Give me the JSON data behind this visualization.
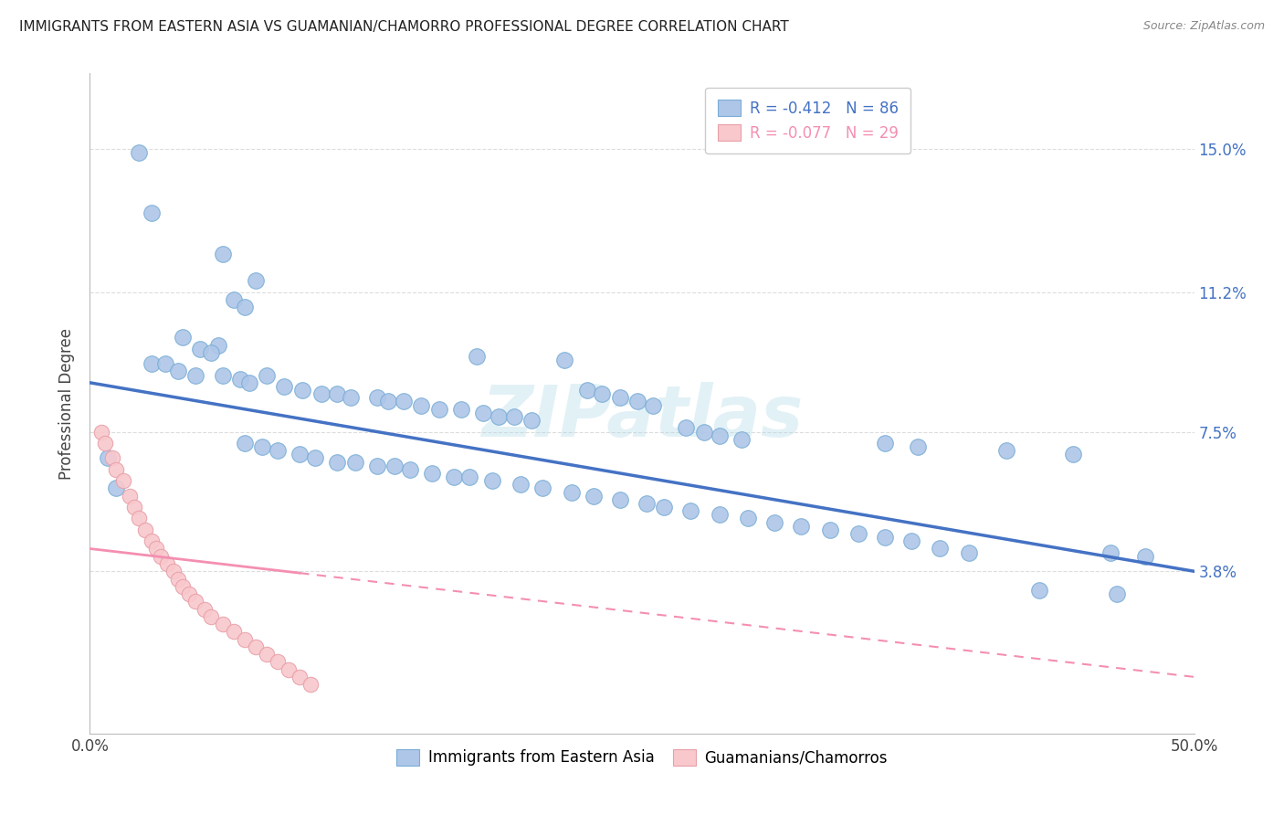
{
  "title": "IMMIGRANTS FROM EASTERN ASIA VS GUAMANIAN/CHAMORRO PROFESSIONAL DEGREE CORRELATION CHART",
  "source": "Source: ZipAtlas.com",
  "ylabel": "Professional Degree",
  "ytick_labels": [
    "3.8%",
    "7.5%",
    "11.2%",
    "15.0%"
  ],
  "ytick_values": [
    0.038,
    0.075,
    0.112,
    0.15
  ],
  "xlim": [
    0.0,
    0.5
  ],
  "ylim": [
    -0.005,
    0.17
  ],
  "legend_label_blue": "Immigrants from Eastern Asia",
  "legend_label_pink": "Guamanians/Chamorros",
  "blue_r": -0.412,
  "blue_n": 86,
  "pink_r": -0.077,
  "pink_n": 29,
  "blue_line_y0": 0.088,
  "blue_line_y1": 0.038,
  "pink_line_y0": 0.044,
  "pink_line_y1": 0.01,
  "blue_line_color": "#4472C4",
  "pink_line_color": "#F48FB1",
  "pink_line_solid_end": 0.095,
  "blue_scatter_color": "#AEC6E8",
  "pink_scatter_color": "#F8C8CC",
  "watermark": "ZIPatlas",
  "grid_color": "#DDDDDD",
  "background_color": "#FFFFFF",
  "title_fontsize": 11,
  "blue_scatter": [
    [
      0.022,
      0.149
    ],
    [
      0.028,
      0.133
    ],
    [
      0.06,
      0.122
    ],
    [
      0.075,
      0.115
    ],
    [
      0.065,
      0.11
    ],
    [
      0.07,
      0.108
    ],
    [
      0.042,
      0.1
    ],
    [
      0.058,
      0.098
    ],
    [
      0.05,
      0.097
    ],
    [
      0.055,
      0.096
    ],
    [
      0.028,
      0.093
    ],
    [
      0.034,
      0.093
    ],
    [
      0.04,
      0.091
    ],
    [
      0.048,
      0.09
    ],
    [
      0.06,
      0.09
    ],
    [
      0.08,
      0.09
    ],
    [
      0.068,
      0.089
    ],
    [
      0.072,
      0.088
    ],
    [
      0.088,
      0.087
    ],
    [
      0.096,
      0.086
    ],
    [
      0.105,
      0.085
    ],
    [
      0.112,
      0.085
    ],
    [
      0.118,
      0.084
    ],
    [
      0.13,
      0.084
    ],
    [
      0.135,
      0.083
    ],
    [
      0.142,
      0.083
    ],
    [
      0.15,
      0.082
    ],
    [
      0.158,
      0.081
    ],
    [
      0.168,
      0.081
    ],
    [
      0.178,
      0.08
    ],
    [
      0.185,
      0.079
    ],
    [
      0.192,
      0.079
    ],
    [
      0.2,
      0.078
    ],
    [
      0.215,
      0.094
    ],
    [
      0.175,
      0.095
    ],
    [
      0.225,
      0.086
    ],
    [
      0.232,
      0.085
    ],
    [
      0.24,
      0.084
    ],
    [
      0.248,
      0.083
    ],
    [
      0.255,
      0.082
    ],
    [
      0.27,
      0.076
    ],
    [
      0.278,
      0.075
    ],
    [
      0.285,
      0.074
    ],
    [
      0.295,
      0.073
    ],
    [
      0.07,
      0.072
    ],
    [
      0.078,
      0.071
    ],
    [
      0.085,
      0.07
    ],
    [
      0.095,
      0.069
    ],
    [
      0.102,
      0.068
    ],
    [
      0.112,
      0.067
    ],
    [
      0.12,
      0.067
    ],
    [
      0.13,
      0.066
    ],
    [
      0.138,
      0.066
    ],
    [
      0.145,
      0.065
    ],
    [
      0.155,
      0.064
    ],
    [
      0.165,
      0.063
    ],
    [
      0.172,
      0.063
    ],
    [
      0.182,
      0.062
    ],
    [
      0.195,
      0.061
    ],
    [
      0.205,
      0.06
    ],
    [
      0.218,
      0.059
    ],
    [
      0.228,
      0.058
    ],
    [
      0.24,
      0.057
    ],
    [
      0.252,
      0.056
    ],
    [
      0.26,
      0.055
    ],
    [
      0.272,
      0.054
    ],
    [
      0.285,
      0.053
    ],
    [
      0.298,
      0.052
    ],
    [
      0.31,
      0.051
    ],
    [
      0.322,
      0.05
    ],
    [
      0.335,
      0.049
    ],
    [
      0.348,
      0.048
    ],
    [
      0.36,
      0.047
    ],
    [
      0.372,
      0.046
    ],
    [
      0.385,
      0.044
    ],
    [
      0.398,
      0.043
    ],
    [
      0.36,
      0.072
    ],
    [
      0.375,
      0.071
    ],
    [
      0.415,
      0.07
    ],
    [
      0.43,
      0.033
    ],
    [
      0.465,
      0.032
    ],
    [
      0.445,
      0.069
    ],
    [
      0.462,
      0.043
    ],
    [
      0.478,
      0.042
    ],
    [
      0.012,
      0.06
    ],
    [
      0.008,
      0.068
    ]
  ],
  "pink_scatter": [
    [
      0.005,
      0.075
    ],
    [
      0.007,
      0.072
    ],
    [
      0.01,
      0.068
    ],
    [
      0.012,
      0.065
    ],
    [
      0.015,
      0.062
    ],
    [
      0.018,
      0.058
    ],
    [
      0.02,
      0.055
    ],
    [
      0.022,
      0.052
    ],
    [
      0.025,
      0.049
    ],
    [
      0.028,
      0.046
    ],
    [
      0.03,
      0.044
    ],
    [
      0.032,
      0.042
    ],
    [
      0.035,
      0.04
    ],
    [
      0.038,
      0.038
    ],
    [
      0.04,
      0.036
    ],
    [
      0.042,
      0.034
    ],
    [
      0.045,
      0.032
    ],
    [
      0.048,
      0.03
    ],
    [
      0.052,
      0.028
    ],
    [
      0.055,
      0.026
    ],
    [
      0.06,
      0.024
    ],
    [
      0.065,
      0.022
    ],
    [
      0.07,
      0.02
    ],
    [
      0.075,
      0.018
    ],
    [
      0.08,
      0.016
    ],
    [
      0.085,
      0.014
    ],
    [
      0.09,
      0.012
    ],
    [
      0.095,
      0.01
    ],
    [
      0.1,
      0.008
    ]
  ]
}
